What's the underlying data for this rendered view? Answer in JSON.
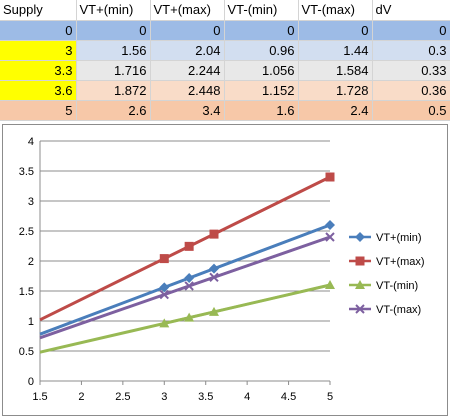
{
  "table": {
    "headers": [
      "Supply",
      "VT+(min)",
      "VT+(max)",
      "VT-(min)",
      "VT-(max)",
      "dV"
    ],
    "rows": [
      [
        "0",
        "0",
        "0",
        "0",
        "0",
        "0"
      ],
      [
        "3",
        "1.56",
        "2.04",
        "0.96",
        "1.44",
        "0.3"
      ],
      [
        "3.3",
        "1.716",
        "2.244",
        "1.056",
        "1.584",
        "0.33"
      ],
      [
        "3.6",
        "1.872",
        "2.448",
        "1.152",
        "1.728",
        "0.36"
      ],
      [
        "5",
        "2.6",
        "3.4",
        "1.6",
        "2.4",
        "0.5"
      ]
    ]
  },
  "colors": {
    "highlight": "#ffff00",
    "vtp_min": "#4a7ebb",
    "vtp_max": "#be4b48",
    "vtm_min": "#98b954",
    "vtm_max": "#7d60a0"
  },
  "chart_data": {
    "type": "line",
    "title": "",
    "xlabel": "",
    "ylabel": "",
    "xlim": [
      1.5,
      5
    ],
    "ylim": [
      0,
      4
    ],
    "xticks": [
      "1.5",
      "2",
      "2.5",
      "3",
      "3.5",
      "4",
      "4.5",
      "5"
    ],
    "yticks": [
      "0",
      "0.5",
      "1",
      "1.5",
      "2",
      "2.5",
      "3",
      "3.5",
      "4"
    ],
    "grid": "horizontal",
    "legend": "right",
    "x": [
      3,
      3.3,
      3.6,
      5
    ],
    "series": [
      {
        "name": "VT+(min)",
        "marker": "diamond",
        "values": [
          1.56,
          1.716,
          1.872,
          2.6
        ]
      },
      {
        "name": "VT+(max)",
        "marker": "square",
        "values": [
          2.04,
          2.244,
          2.448,
          3.4
        ]
      },
      {
        "name": "VT-(min)",
        "marker": "triangle",
        "values": [
          0.96,
          1.056,
          1.152,
          1.6
        ]
      },
      {
        "name": "VT-(max)",
        "marker": "x",
        "values": [
          1.44,
          1.584,
          1.728,
          2.4
        ]
      }
    ],
    "trendlines": [
      {
        "series": "VT+(min)",
        "slope": 0.52,
        "intercept": 0
      },
      {
        "series": "VT+(max)",
        "slope": 0.68,
        "intercept": 0
      },
      {
        "series": "VT-(min)",
        "slope": 0.32,
        "intercept": 0
      },
      {
        "series": "VT-(max)",
        "slope": 0.48,
        "intercept": 0
      }
    ]
  }
}
